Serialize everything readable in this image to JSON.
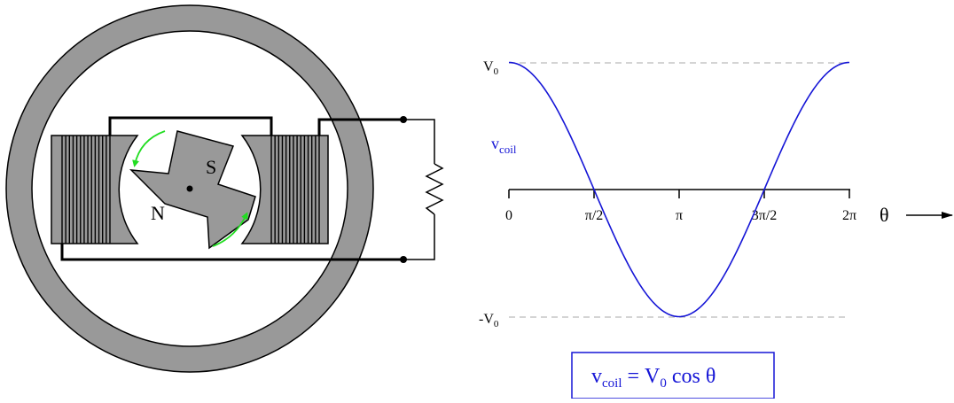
{
  "generator": {
    "north_pole_label": "N",
    "south_pole_label": "S"
  },
  "chart_data": {
    "type": "line",
    "function": "cosine",
    "x_unit": "radians",
    "x_ticks": [
      {
        "value": 0,
        "label": "0"
      },
      {
        "value": 1.5708,
        "label": "π/2"
      },
      {
        "value": 3.1416,
        "label": "π"
      },
      {
        "value": 4.7124,
        "label": "3π/2"
      },
      {
        "value": 6.2832,
        "label": "2π"
      }
    ],
    "xlim": [
      0,
      6.2832
    ],
    "x_axis_label": "θ",
    "y_axis_label_main": "v",
    "y_axis_label_sub": "coil",
    "y_max_label_main": "V",
    "y_max_label_sub": "0",
    "y_min_label_main": "-V",
    "y_min_label_sub": "0",
    "ylim": [
      -1,
      1
    ],
    "series": [
      {
        "x": [
          0,
          0.7854,
          1.5708,
          2.3562,
          3.1416,
          3.927,
          4.7124,
          5.4978,
          6.2832
        ],
        "y": [
          1,
          0.7071,
          0,
          -0.7071,
          -1,
          -0.7071,
          0,
          0.7071,
          1
        ]
      }
    ],
    "colors": {
      "curve": "#1515d6",
      "reference_lines": "#bbbbbb",
      "arrows": "#22dd22"
    }
  },
  "equation": {
    "lhs_main": "v",
    "lhs_sub": "coil",
    "equals": "=",
    "rhs_v": "V",
    "rhs_sub": "0",
    "rhs_rest": "cos θ"
  }
}
